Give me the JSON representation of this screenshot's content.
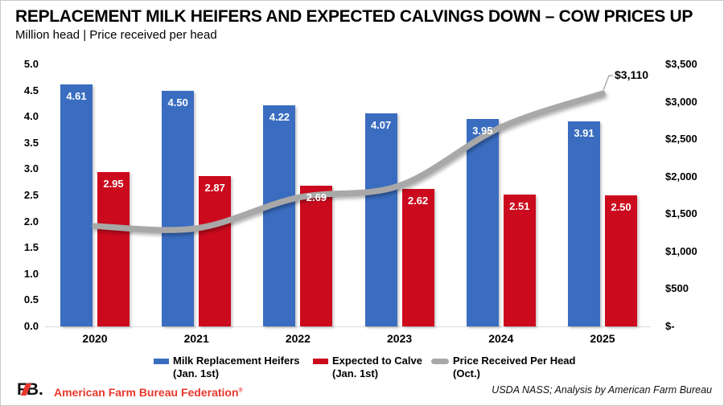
{
  "header": {
    "title": "REPLACEMENT MILK HEIFERS AND EXPECTED CALVINGS DOWN – COW PRICES UP",
    "subtitle": "Million head | Price received per head"
  },
  "chart_data": {
    "type": "bar",
    "subtype": "combo-bar-line-dual-axis",
    "categories": [
      "2020",
      "2021",
      "2022",
      "2023",
      "2024",
      "2025"
    ],
    "series": [
      {
        "name": "Milk Replacement Heifers (Jan. 1st)",
        "type": "bar",
        "axis": "left",
        "color": "#3A6DC0",
        "values": [
          4.61,
          4.5,
          4.22,
          4.07,
          3.95,
          3.91
        ],
        "labels": [
          "4.61",
          "4.50",
          "4.22",
          "4.07",
          "3.95",
          "3.91"
        ]
      },
      {
        "name": "Expected to Calve (Jan. 1st)",
        "type": "bar",
        "axis": "left",
        "color": "#CB0A1E",
        "values": [
          2.95,
          2.87,
          2.69,
          2.62,
          2.51,
          2.5
        ],
        "labels": [
          "2.95",
          "2.87",
          "2.69",
          "2.62",
          "2.51",
          "2.50"
        ]
      },
      {
        "name": "Price Received Per Head (Oct.)",
        "type": "line",
        "axis": "right",
        "color": "#A8A8A8",
        "values": [
          1340,
          1310,
          1720,
          1880,
          2660,
          3110
        ]
      }
    ],
    "left_axis": {
      "min": 0,
      "max": 5,
      "ticks": [
        {
          "label": "5.0",
          "value": 5.0
        },
        {
          "label": "4.5",
          "value": 4.5
        },
        {
          "label": "4.0",
          "value": 4.0
        },
        {
          "label": "3.5",
          "value": 3.5
        },
        {
          "label": "3.0",
          "value": 3.0
        },
        {
          "label": "2.5",
          "value": 2.5
        },
        {
          "label": "2.0",
          "value": 2.0
        },
        {
          "label": "1.5",
          "value": 1.5
        },
        {
          "label": "1.0",
          "value": 1.0
        },
        {
          "label": "0.5",
          "value": 0.5
        },
        {
          "label": "0.0",
          "value": 0.0
        }
      ]
    },
    "right_axis": {
      "min": 0,
      "max": 3500,
      "ticks": [
        {
          "label": "$3,500",
          "value": 3500
        },
        {
          "label": "$3,000",
          "value": 3000
        },
        {
          "label": "$2,500",
          "value": 2500
        },
        {
          "label": "$2,000",
          "value": 2000
        },
        {
          "label": "$1,500",
          "value": 1500
        },
        {
          "label": "$1,000",
          "value": 1000
        },
        {
          "label": "$500",
          "value": 500
        },
        {
          "label": "$-",
          "value": 0
        }
      ]
    },
    "annotation": {
      "label": "$3,110",
      "value": 3110,
      "category": "2025"
    },
    "grid": false,
    "legend_position": "bottom"
  },
  "legend": {
    "items": [
      {
        "line1": "Milk Replacement Heifers",
        "line2": "(Jan. 1st)"
      },
      {
        "line1": "Expected to Calve",
        "line2": "(Jan. 1st)"
      },
      {
        "line1": "Price Received Per Head",
        "line2": "(Oct.)"
      }
    ]
  },
  "footer": {
    "logo": {
      "f": "F",
      "b": "B",
      "dot": "."
    },
    "brand": "American Farm Bureau Federation",
    "brand_mark": "®",
    "brand_color": "#E8372D",
    "source": "USDA NASS; Analysis by American Farm Bureau"
  }
}
